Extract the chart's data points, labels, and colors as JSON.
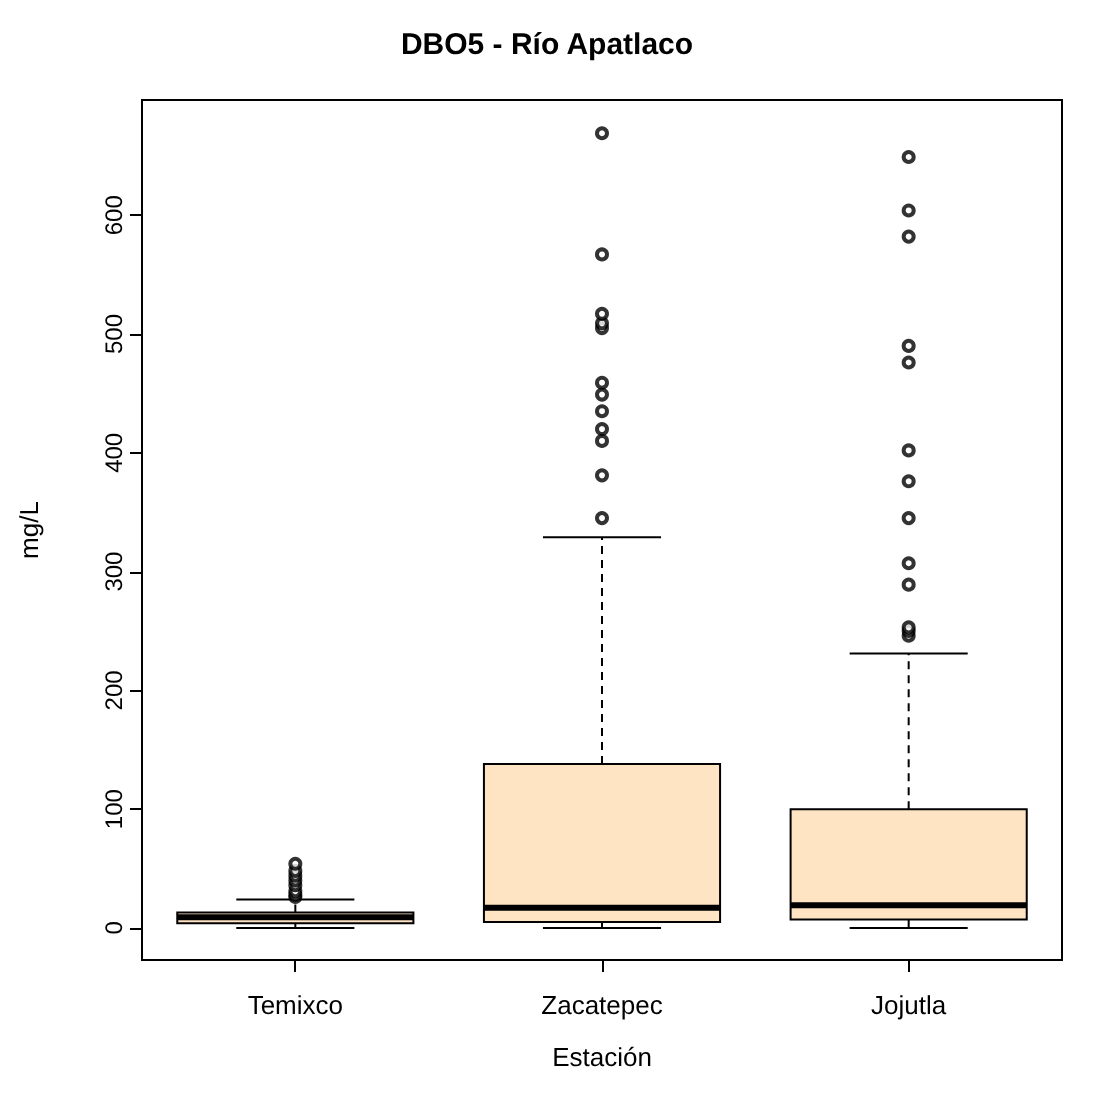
{
  "chart_data": {
    "type": "box",
    "title": "DBO5 - Río Apatlaco",
    "xlabel": "Estación",
    "ylabel": "mg/L",
    "categories": [
      "Temixco",
      "Zacatepec",
      "Jojutla"
    ],
    "color": "#ffe4c4",
    "boxes": [
      {
        "low": 0,
        "q1": 4,
        "median": 9,
        "q3": 13,
        "high": 24,
        "outliers": [
          26,
          28,
          31,
          36,
          40,
          44,
          48,
          54
        ]
      },
      {
        "low": 0,
        "q1": 5,
        "median": 17,
        "q3": 138,
        "high": 329,
        "outliers": [
          345,
          381,
          410,
          420,
          435,
          449,
          459,
          505,
          509,
          517,
          567,
          669
        ]
      },
      {
        "low": 0,
        "q1": 7,
        "median": 19,
        "q3": 100,
        "high": 231,
        "outliers": [
          246,
          250,
          253,
          289,
          307,
          345,
          376,
          402,
          476,
          490,
          582,
          604,
          649
        ]
      }
    ],
    "ylim": [
      -27,
      697
    ],
    "yticks": [
      0,
      100,
      200,
      300,
      400,
      500,
      600
    ],
    "grid": false,
    "marker": "circle"
  }
}
